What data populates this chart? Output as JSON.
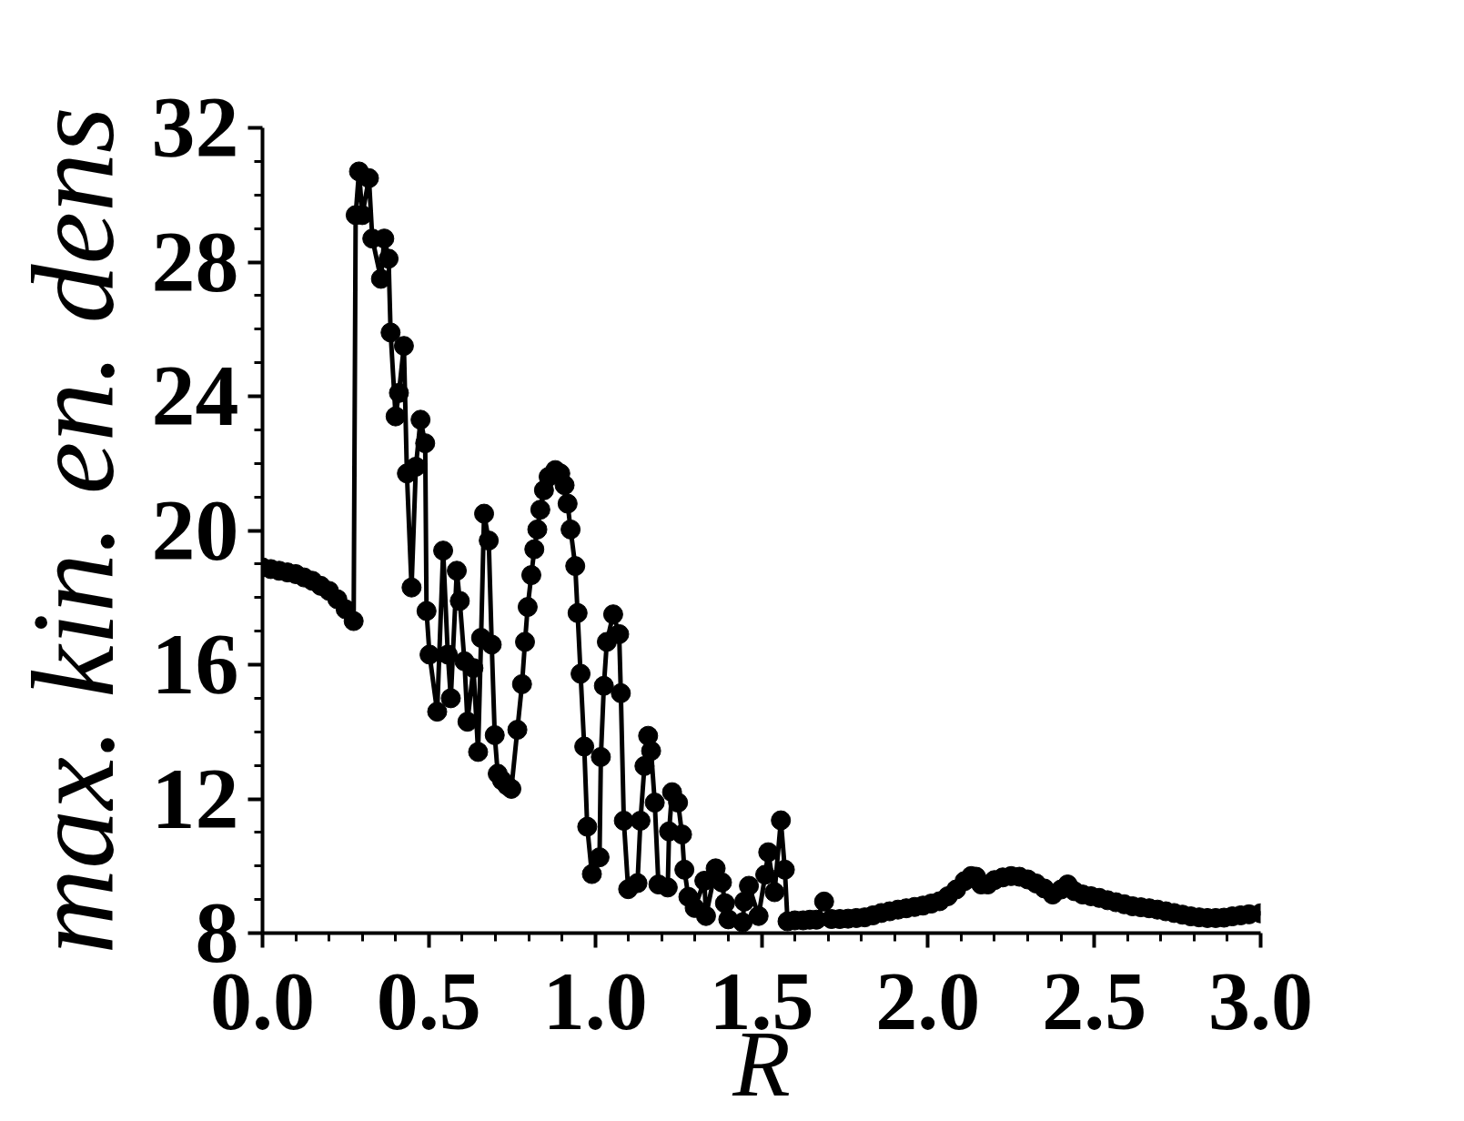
{
  "chart_data": {
    "type": "line",
    "xlabel": "R",
    "ylabel": "max. kin. en. dens",
    "color": "#000000",
    "marker": "circle",
    "line_style": "solid",
    "x": [
      0.0,
      0.025,
      0.05,
      0.075,
      0.1,
      0.125,
      0.15,
      0.175,
      0.2,
      0.225,
      0.25,
      0.274,
      0.28,
      0.29,
      0.3,
      0.32,
      0.33,
      0.356,
      0.366,
      0.379,
      0.385,
      0.4,
      0.41,
      0.425,
      0.434,
      0.448,
      0.461,
      0.475,
      0.489,
      0.493,
      0.502,
      0.525,
      0.543,
      0.557,
      0.566,
      0.584,
      0.593,
      0.607,
      0.616,
      0.634,
      0.648,
      0.657,
      0.666,
      0.68,
      0.689,
      0.698,
      0.707,
      0.72,
      0.735,
      0.748,
      0.766,
      0.78,
      0.789,
      0.797,
      0.808,
      0.817,
      0.826,
      0.835,
      0.846,
      0.86,
      0.88,
      0.895,
      0.908,
      0.917,
      0.926,
      0.94,
      0.947,
      0.956,
      0.967,
      0.976,
      0.99,
      1.013,
      1.017,
      1.026,
      1.035,
      1.054,
      1.072,
      1.077,
      1.086,
      1.099,
      1.127,
      1.136,
      1.148,
      1.159,
      1.168,
      1.179,
      1.19,
      1.218,
      1.222,
      1.231,
      1.249,
      1.261,
      1.268,
      1.28,
      1.299,
      1.328,
      1.333,
      1.362,
      1.381,
      1.39,
      1.4,
      1.443,
      1.448,
      1.462,
      1.491,
      1.511,
      1.52,
      1.539,
      1.558,
      1.57,
      1.578,
      1.6,
      1.625,
      1.645,
      1.665,
      1.688,
      1.71,
      1.735,
      1.76,
      1.785,
      1.81,
      1.835,
      1.86,
      1.885,
      1.91,
      1.935,
      1.96,
      1.985,
      2.01,
      2.035,
      2.06,
      2.085,
      2.11,
      2.13,
      2.145,
      2.16,
      2.18,
      2.2,
      2.225,
      2.25,
      2.275,
      2.3,
      2.325,
      2.35,
      2.375,
      2.4,
      2.42,
      2.44,
      2.465,
      2.49,
      2.515,
      2.54,
      2.565,
      2.59,
      2.615,
      2.64,
      2.665,
      2.69,
      2.715,
      2.74,
      2.765,
      2.79,
      2.815,
      2.84,
      2.865,
      2.89,
      2.915,
      2.94,
      2.965,
      3.0
    ],
    "values": [
      18.9,
      18.85,
      18.8,
      18.75,
      18.7,
      18.6,
      18.5,
      18.35,
      18.2,
      17.95,
      17.65,
      17.3,
      29.4,
      30.7,
      29.4,
      30.5,
      28.7,
      27.5,
      28.7,
      28.1,
      25.9,
      23.4,
      24.1,
      25.5,
      21.7,
      18.3,
      21.9,
      23.3,
      22.6,
      17.6,
      16.3,
      14.6,
      19.4,
      16.3,
      15.0,
      18.8,
      17.9,
      16.1,
      14.3,
      15.9,
      13.4,
      16.8,
      20.5,
      19.7,
      16.6,
      13.9,
      12.75,
      12.55,
      12.4,
      12.3,
      14.06,
      15.42,
      16.68,
      17.72,
      18.67,
      19.44,
      20.03,
      20.62,
      21.2,
      21.6,
      21.8,
      21.7,
      21.35,
      20.8,
      20.03,
      18.94,
      17.54,
      15.73,
      13.56,
      11.17,
      9.76,
      10.26,
      13.25,
      15.37,
      16.68,
      17.5,
      16.91,
      15.15,
      11.35,
      9.31,
      9.49,
      11.35,
      12.98,
      13.88,
      13.43,
      11.89,
      9.45,
      9.36,
      11.03,
      12.2,
      11.89,
      10.94,
      9.89,
      9.08,
      8.75,
      9.56,
      8.51,
      9.93,
      9.51,
      8.89,
      8.41,
      8.32,
      8.94,
      9.41,
      8.51,
      9.74,
      10.41,
      9.22,
      11.36,
      9.89,
      8.35,
      8.38,
      8.38,
      8.4,
      8.4,
      8.94,
      8.42,
      8.42,
      8.43,
      8.45,
      8.47,
      8.53,
      8.6,
      8.65,
      8.7,
      8.74,
      8.78,
      8.82,
      8.88,
      8.95,
      9.1,
      9.3,
      9.55,
      9.7,
      9.68,
      9.45,
      9.45,
      9.58,
      9.66,
      9.7,
      9.68,
      9.6,
      9.48,
      9.33,
      9.15,
      9.3,
      9.45,
      9.25,
      9.15,
      9.1,
      9.05,
      8.98,
      8.92,
      8.86,
      8.8,
      8.77,
      8.74,
      8.7,
      8.65,
      8.6,
      8.55,
      8.5,
      8.47,
      8.45,
      8.45,
      8.46,
      8.5,
      8.53,
      8.56,
      8.59
    ],
    "xlim": [
      0,
      3
    ],
    "ylim": [
      8,
      32
    ],
    "xticks": [
      {
        "value": 0,
        "label": "0.0"
      },
      0.5,
      {
        "value": 1,
        "label": "1.0"
      },
      1.5,
      {
        "value": 2,
        "label": "2.0"
      },
      2.5,
      {
        "value": 3,
        "label": "3.0"
      }
    ],
    "yticks": [
      8,
      12,
      16,
      20,
      24,
      28,
      32
    ]
  }
}
